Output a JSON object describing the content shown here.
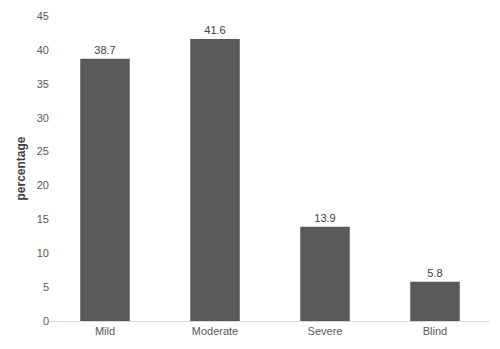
{
  "chart_data": {
    "type": "bar",
    "categories": [
      "Mild",
      "Moderate",
      "Severe",
      "Blind"
    ],
    "values": [
      38.7,
      41.6,
      13.9,
      5.8
    ],
    "color": "#595959",
    "y_label": "percentage",
    "ylim": [
      0,
      45
    ],
    "yticks": [
      0,
      5,
      10,
      15,
      20,
      25,
      30,
      35,
      40,
      45
    ],
    "grid": false,
    "data_labels": true
  }
}
